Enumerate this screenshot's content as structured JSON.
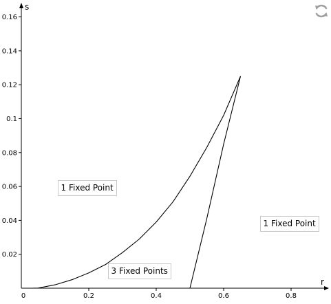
{
  "chart_data": {
    "type": "line",
    "xlabel": "r",
    "ylabel": "s",
    "xlim": [
      0,
      0.9
    ],
    "ylim": [
      0,
      0.167
    ],
    "x_ticks": [
      0,
      0.2,
      0.4,
      0.6,
      0.8
    ],
    "x_tick_labels": [
      "0",
      "0.2",
      "0.4",
      "0.6",
      "0.8"
    ],
    "y_ticks": [
      0.02,
      0.04,
      0.06,
      0.08,
      0.1,
      0.12,
      0.14,
      0.16
    ],
    "y_tick_labels": [
      "0.02",
      "0.04",
      "0.06",
      "0.08",
      "0.1",
      "0.12",
      "0.14",
      "0.16"
    ],
    "grid": false,
    "series": [
      {
        "color": "#000000",
        "points": [
          [
            0.03,
            0
          ],
          [
            0.05,
            0.0001
          ],
          [
            0.1,
            0.002
          ],
          [
            0.15,
            0.005
          ],
          [
            0.2,
            0.009
          ],
          [
            0.25,
            0.014
          ],
          [
            0.3,
            0.021
          ],
          [
            0.35,
            0.029
          ],
          [
            0.4,
            0.039
          ],
          [
            0.45,
            0.051
          ],
          [
            0.5,
            0.066
          ],
          [
            0.55,
            0.083
          ],
          [
            0.6,
            0.102
          ],
          [
            0.65,
            0.125
          ]
        ]
      },
      {
        "color": "#000000",
        "points": [
          [
            0.65,
            0.125
          ],
          [
            0.6,
            0.085
          ],
          [
            0.55,
            0.041
          ],
          [
            0.5,
            0
          ]
        ]
      }
    ],
    "annotations": [
      {
        "text": "1 Fixed Point",
        "x": 0.195,
        "y": 0.059
      },
      {
        "text": "3 Fixed Points",
        "x": 0.35,
        "y": 0.01
      },
      {
        "text": "1 Fixed Point",
        "x": 0.795,
        "y": 0.038
      }
    ]
  },
  "toolbar": {
    "refresh_icon": "refresh-icon"
  }
}
